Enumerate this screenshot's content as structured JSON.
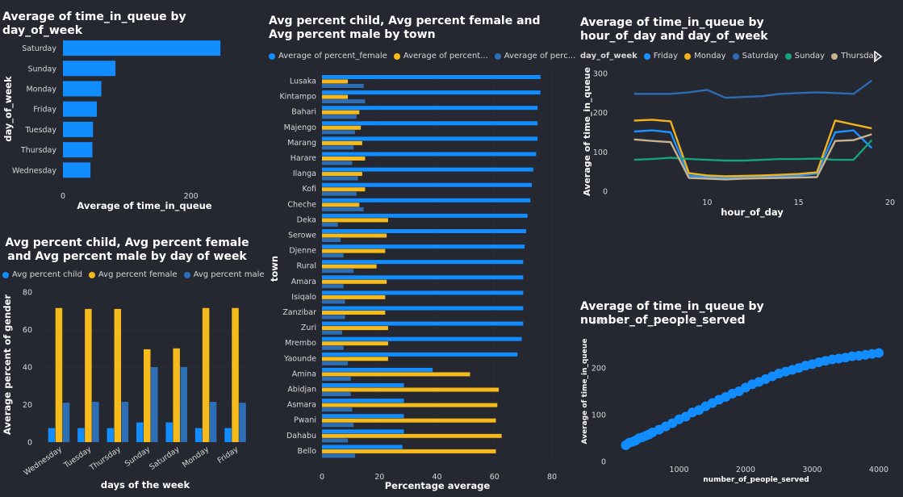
{
  "colors": {
    "background": "#252731",
    "blue": "#118DFF",
    "yellow": "#F6BA1A",
    "steel": "#2D6FB7",
    "friday": "#1E90FF",
    "monday": "#F2B21C",
    "saturday": "#2D6CB2",
    "sunday": "#14A47C",
    "thursday": "#C8B38E"
  },
  "chart_data": [
    {
      "id": "time_by_day",
      "type": "bar",
      "orientation": "horizontal",
      "title": "Average of time_in_queue by day_of_week",
      "xlabel": "Average of time_in_queue",
      "ylabel": "day_of_week",
      "categories": [
        "Saturday",
        "Sunday",
        "Monday",
        "Friday",
        "Tuesday",
        "Thursday",
        "Wednesday"
      ],
      "values": [
        246,
        82,
        60,
        53,
        47,
        46,
        43
      ],
      "xlim": [
        0,
        300
      ],
      "xticks": [
        0,
        200
      ]
    },
    {
      "id": "gender_by_day",
      "type": "bar",
      "title": "Avg percent child, Avg percent female and Avg percent male by day of week",
      "xlabel": "days of the week",
      "ylabel": "Average percent of gender",
      "categories": [
        "Wednesday",
        "Tuesday",
        "Thursday",
        "Sunday",
        "Saturday",
        "Monday",
        "Friday"
      ],
      "series": [
        {
          "name": "Avg percent child",
          "values": [
            7.5,
            7.5,
            7.5,
            10.5,
            10.5,
            7.5,
            7.5
          ]
        },
        {
          "name": "Avg percent female",
          "values": [
            71.5,
            71,
            71,
            49.5,
            50,
            71.5,
            71.5
          ]
        },
        {
          "name": "Avg percent male",
          "values": [
            21,
            21.5,
            21.5,
            40,
            40,
            21.5,
            21
          ]
        }
      ],
      "ylim": [
        0,
        80
      ],
      "yticks": [
        0,
        20,
        40,
        60,
        80
      ]
    },
    {
      "id": "gender_by_town",
      "type": "bar",
      "orientation": "horizontal",
      "title": "Avg percent child, Avg percent female and Avg percent male by town",
      "xlabel": "Percentage average",
      "ylabel": "town",
      "categories": [
        "Lusaka",
        "Kintampo",
        "Bahari",
        "Majengo",
        "Marang",
        "Harare",
        "Ilanga",
        "Kofi",
        "Cheche",
        "Deka",
        "Serowe",
        "Djenne",
        "Rural",
        "Amara",
        "Isiqalo",
        "Zanzibar",
        "Zuri",
        "Mrembo",
        "Yaounde",
        "Amina",
        "Abidjan",
        "Asmara",
        "Pwani",
        "Dahabu",
        "Bello"
      ],
      "series": [
        {
          "name": "Average of percent_female",
          "values": [
            76,
            76,
            75,
            75,
            75,
            74.5,
            73.5,
            73,
            72.5,
            71.5,
            71,
            70.5,
            70,
            70,
            70,
            70,
            70,
            69.5,
            68,
            38.5,
            28.5,
            28.5,
            28.5,
            28.5,
            28
          ]
        },
        {
          "name": "Average of percent...",
          "values": [
            9,
            9,
            13,
            13.5,
            14,
            15,
            14,
            15,
            13,
            23,
            22.5,
            22,
            19,
            22.5,
            22,
            22,
            23,
            23,
            23,
            51.5,
            61.5,
            61,
            60.5,
            62.5,
            60.5
          ]
        },
        {
          "name": "Average of perc...",
          "values": [
            14.5,
            15,
            12,
            11.5,
            11,
            10.5,
            12.5,
            12,
            14.5,
            5.5,
            6.5,
            7.5,
            11,
            7.5,
            8,
            8,
            7,
            7.5,
            9,
            10,
            10,
            10.5,
            11,
            9,
            11.5
          ]
        }
      ],
      "xlim": [
        0,
        80
      ],
      "xticks": [
        0,
        20,
        40,
        60,
        80
      ]
    },
    {
      "id": "time_by_hour",
      "type": "line",
      "title": "Average of time_in_queue by hour_of_day and day_of_week",
      "xlabel": "hour_of_day",
      "ylabel": "Average of time_in_queue",
      "legend_title": "day_of_week",
      "x": [
        6,
        7,
        8,
        9,
        10,
        11,
        12,
        13,
        14,
        15,
        16,
        17,
        18,
        19
      ],
      "series": [
        {
          "name": "Friday",
          "values": [
            152,
            155,
            150,
            40,
            36,
            34,
            35,
            36,
            38,
            40,
            45,
            150,
            155,
            110
          ]
        },
        {
          "name": "Monday",
          "values": [
            180,
            182,
            178,
            46,
            40,
            38,
            39,
            40,
            42,
            44,
            48,
            180,
            170,
            160
          ]
        },
        {
          "name": "Saturday",
          "values": [
            248,
            248,
            248,
            252,
            258,
            238,
            240,
            242,
            248,
            250,
            252,
            250,
            248,
            282
          ]
        },
        {
          "name": "Sunday",
          "values": [
            80,
            82,
            85,
            82,
            80,
            78,
            78,
            80,
            82,
            82,
            83,
            80,
            80,
            130
          ]
        },
        {
          "name": "Thursday",
          "values": [
            132,
            128,
            125,
            34,
            32,
            30,
            32,
            33,
            34,
            35,
            36,
            128,
            130,
            145
          ]
        }
      ],
      "xlim": [
        5,
        20
      ],
      "ylim": [
        0,
        300
      ],
      "xticks": [
        10,
        15,
        20
      ],
      "yticks": [
        0,
        100,
        200,
        300
      ]
    },
    {
      "id": "time_by_people",
      "type": "scatter",
      "title": "Average of time_in_queue by number_of_people_served",
      "xlabel": "number_of_people_served",
      "ylabel": "Average of time_in_queue",
      "x": [
        200,
        250,
        300,
        350,
        400,
        450,
        500,
        550,
        600,
        700,
        800,
        900,
        1000,
        1100,
        1200,
        1300,
        1400,
        1500,
        1600,
        1700,
        1800,
        1900,
        2000,
        2100,
        2200,
        2300,
        2400,
        2500,
        2600,
        2700,
        2800,
        2900,
        3000,
        3100,
        3200,
        3300,
        3400,
        3500,
        3600,
        3700,
        3800,
        3900,
        4000
      ],
      "y": [
        35,
        40,
        42,
        45,
        50,
        52,
        55,
        58,
        62,
        68,
        75,
        82,
        90,
        96,
        105,
        110,
        118,
        125,
        132,
        138,
        145,
        150,
        158,
        165,
        170,
        176,
        182,
        188,
        192,
        196,
        200,
        205,
        208,
        212,
        215,
        218,
        220,
        222,
        225,
        226,
        228,
        230,
        232
      ],
      "xlim": [
        0,
        4000
      ],
      "ylim": [
        0,
        300
      ],
      "xticks": [
        1000,
        2000,
        3000,
        4000
      ],
      "yticks": [
        0,
        100,
        200,
        300
      ]
    }
  ]
}
